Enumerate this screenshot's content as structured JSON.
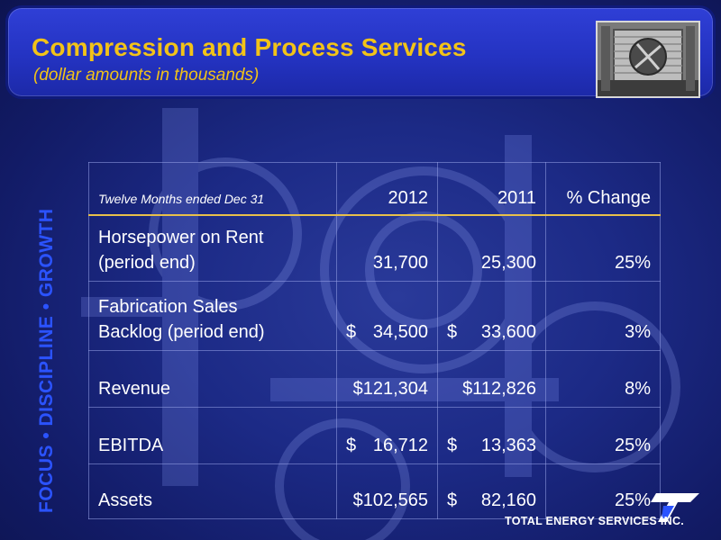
{
  "header": {
    "title": "Compression and Process Services",
    "subtitle": "(dollar amounts in thousands)"
  },
  "sidebar_tagline": "FOCUS • DISCIPLINE • GROWTH",
  "table": {
    "period_label": "Twelve Months ended Dec 31",
    "columns": [
      "2012",
      "2011",
      "% Change"
    ],
    "rows": [
      {
        "label_line1": "Horsepower on Rent",
        "label_line2": "(period end)",
        "v2012": "31,700",
        "v2011": "25,300",
        "change": "25%"
      },
      {
        "label_line1": "Fabrication Sales",
        "label_line2": "Backlog (period end)",
        "v2012_sym": "$",
        "v2012": "34,500",
        "v2011_sym": "$",
        "v2011": "33,600",
        "change": "3%"
      },
      {
        "label": "Revenue",
        "v2012": "$121,304",
        "v2011": "$112,826",
        "change": "8%"
      },
      {
        "label": "EBITDA",
        "v2012_sym": "$",
        "v2012": "16,712",
        "v2011_sym": "$",
        "v2011": "13,363",
        "change": "25%"
      },
      {
        "label": "Assets",
        "v2012": "$102,565",
        "v2011_sym": "$",
        "v2011": "82,160",
        "change": "25%"
      }
    ]
  },
  "footer": {
    "company": "TOTAL ENERGY SERVICES INC."
  },
  "colors": {
    "title_accent": "#f2c318",
    "tagline": "#2b53ff",
    "background": "#1c2a86",
    "header_band": "#2433c2"
  }
}
